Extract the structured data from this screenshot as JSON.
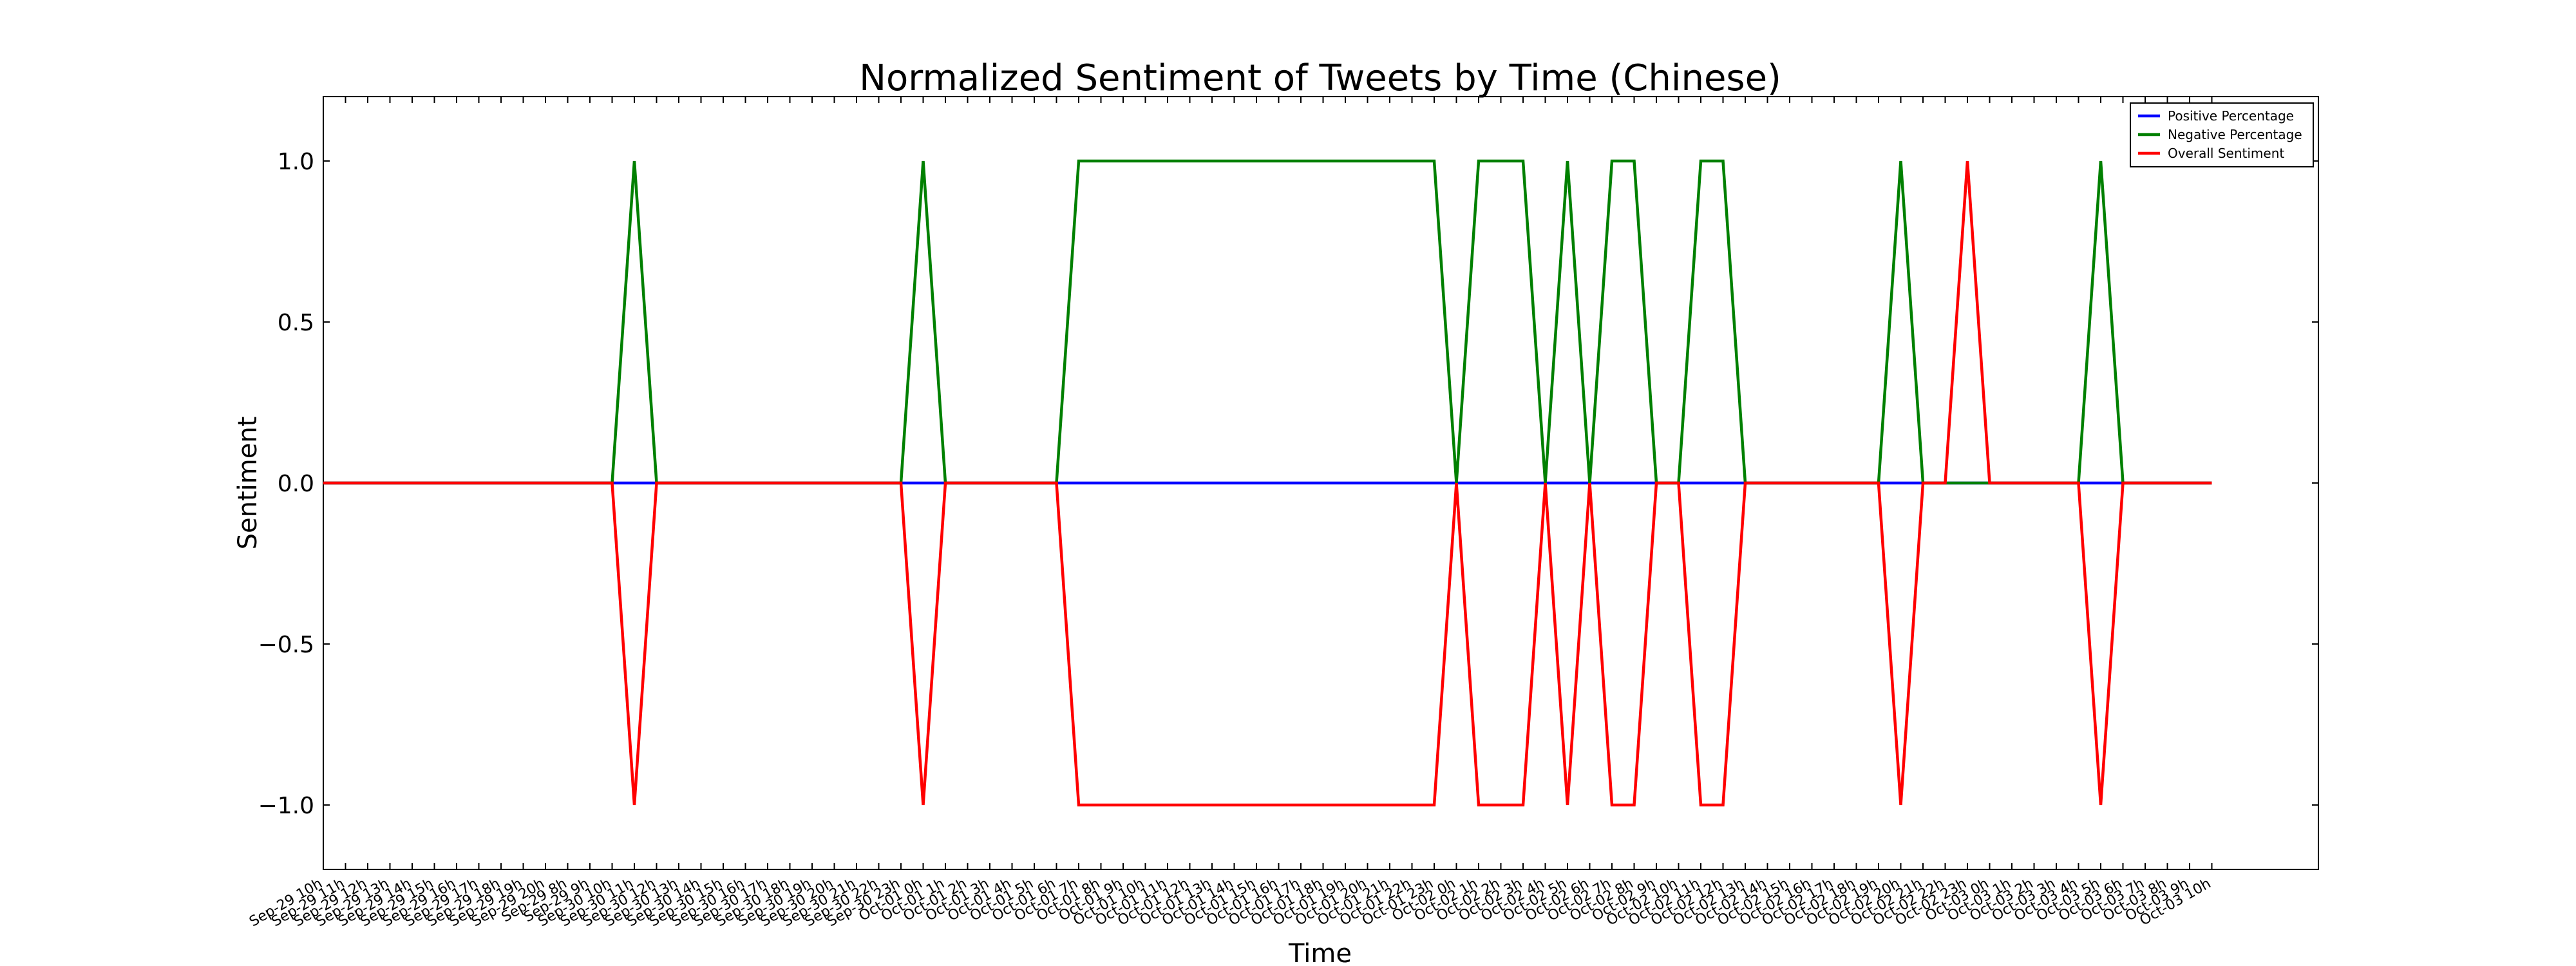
{
  "chart_data": {
    "type": "line",
    "title": "Normalized Sentiment of Tweets by Time (Chinese)",
    "xlabel": "Time",
    "ylabel": "Sentiment",
    "ylim": [
      -1.2,
      1.2
    ],
    "yticks": [
      -1.0,
      -0.5,
      0.0,
      0.5,
      1.0
    ],
    "ytick_labels": [
      "−1.0",
      "−0.5",
      "0.0",
      "0.5",
      "1.0"
    ],
    "grid": false,
    "legend_position": "top-right",
    "categories": [
      "Sep-29 10h",
      "Sep-29 11h",
      "Sep-29 12h",
      "Sep-29 13h",
      "Sep-29 14h",
      "Sep-29 15h",
      "Sep-29 16h",
      "Sep-29 17h",
      "Sep-29 18h",
      "Sep-29 19h",
      "Sep-29 20h",
      "Sep-29 8h",
      "Sep-29 9h",
      "Sep-30 10h",
      "Sep-30 11h",
      "Sep-30 12h",
      "Sep-30 13h",
      "Sep-30 14h",
      "Sep-30 15h",
      "Sep-30 16h",
      "Sep-30 17h",
      "Sep-30 18h",
      "Sep-30 19h",
      "Sep-30 20h",
      "Sep-30 21h",
      "Sep-30 22h",
      "Sep-30 23h",
      "Oct-01 0h",
      "Oct-01 1h",
      "Oct-01 2h",
      "Oct-01 3h",
      "Oct-01 4h",
      "Oct-01 5h",
      "Oct-01 6h",
      "Oct-01 7h",
      "Oct-01 8h",
      "Oct-01 9h",
      "Oct-01 10h",
      "Oct-01 11h",
      "Oct-01 12h",
      "Oct-01 13h",
      "Oct-01 14h",
      "Oct-01 15h",
      "Oct-01 16h",
      "Oct-01 17h",
      "Oct-01 18h",
      "Oct-01 19h",
      "Oct-01 20h",
      "Oct-01 21h",
      "Oct-01 22h",
      "Oct-01 23h",
      "Oct-02 0h",
      "Oct-02 1h",
      "Oct-02 2h",
      "Oct-02 3h",
      "Oct-02 4h",
      "Oct-02 5h",
      "Oct-02 6h",
      "Oct-02 7h",
      "Oct-02 8h",
      "Oct-02 9h",
      "Oct-02 10h",
      "Oct-02 11h",
      "Oct-02 12h",
      "Oct-02 13h",
      "Oct-02 14h",
      "Oct-02 15h",
      "Oct-02 16h",
      "Oct-02 17h",
      "Oct-02 18h",
      "Oct-02 19h",
      "Oct-02 20h",
      "Oct-02 21h",
      "Oct-02 22h",
      "Oct-02 23h",
      "Oct-03 0h",
      "Oct-03 1h",
      "Oct-03 2h",
      "Oct-03 3h",
      "Oct-03 4h",
      "Oct-03 5h",
      "Oct-03 6h",
      "Oct-03 7h",
      "Oct-03 8h",
      "Oct-03 9h",
      "Oct-03 10h"
    ],
    "series": [
      {
        "name": "Positive Percentage",
        "color": "#0000ff",
        "values": [
          0,
          0,
          0,
          0,
          0,
          0,
          0,
          0,
          0,
          0,
          0,
          0,
          0,
          0,
          0,
          0,
          0,
          0,
          0,
          0,
          0,
          0,
          0,
          0,
          0,
          0,
          0,
          0,
          0,
          0,
          0,
          0,
          0,
          0,
          0,
          0,
          0,
          0,
          0,
          0,
          0,
          0,
          0,
          0,
          0,
          0,
          0,
          0,
          0,
          0,
          0,
          0,
          0,
          0,
          0,
          0,
          0,
          0,
          0,
          0,
          0,
          0,
          0,
          0,
          0,
          0,
          0,
          0,
          0,
          0,
          0,
          0,
          0,
          0,
          0,
          0,
          0,
          0,
          0,
          0,
          0,
          0,
          0,
          0,
          0,
          0
        ]
      },
      {
        "name": "Negative Percentage",
        "color": "#008000",
        "values": [
          0,
          0,
          0,
          0,
          0,
          0,
          0,
          0,
          0,
          0,
          0,
          0,
          0,
          0,
          1,
          0,
          0,
          0,
          0,
          0,
          0,
          0,
          0,
          0,
          0,
          0,
          0,
          1,
          0,
          0,
          0,
          0,
          0,
          0,
          1,
          1,
          1,
          1,
          1,
          1,
          1,
          1,
          1,
          1,
          1,
          1,
          1,
          1,
          1,
          1,
          1,
          0,
          1,
          1,
          1,
          0,
          1,
          0,
          1,
          1,
          0,
          0,
          1,
          1,
          0,
          0,
          0,
          0,
          0,
          0,
          0,
          1,
          0,
          0,
          0,
          0,
          0,
          0,
          0,
          0,
          1,
          0,
          0,
          0,
          0,
          0
        ]
      },
      {
        "name": "Overall Sentiment",
        "color": "#ff0000",
        "values": [
          0,
          0,
          0,
          0,
          0,
          0,
          0,
          0,
          0,
          0,
          0,
          0,
          0,
          0,
          -1,
          0,
          0,
          0,
          0,
          0,
          0,
          0,
          0,
          0,
          0,
          0,
          0,
          -1,
          0,
          0,
          0,
          0,
          0,
          0,
          -1,
          -1,
          -1,
          -1,
          -1,
          -1,
          -1,
          -1,
          -1,
          -1,
          -1,
          -1,
          -1,
          -1,
          -1,
          -1,
          -1,
          0,
          -1,
          -1,
          -1,
          0,
          -1,
          0,
          -1,
          -1,
          0,
          0,
          -1,
          -1,
          0,
          0,
          0,
          0,
          0,
          0,
          0,
          -1,
          0,
          0,
          1,
          0,
          0,
          0,
          0,
          0,
          -1,
          0,
          0,
          0,
          0,
          0
        ]
      }
    ]
  }
}
